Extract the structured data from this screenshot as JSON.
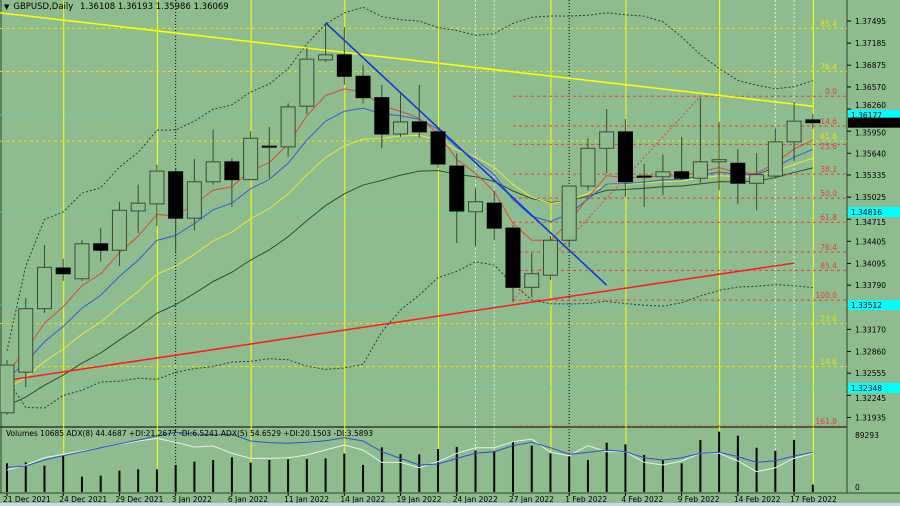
{
  "header": {
    "symbol": "GBPUSD,Daily",
    "ohlc": "1.36108 1.36193 1.35986 1.36069"
  },
  "indicator_label": "Volumes 10685  ADX(8) 44.4687 +DI:21.2677 -DI:6.5241  ADX(5) 54.6529 +DI:20.1503 -DI:3.5893",
  "colors": {
    "background": "#8fbc8f",
    "bull_body": "#8fbc8f",
    "bear_body": "#000000",
    "candle_outline": "#3a4a3a",
    "ma_fast": "#e0463a",
    "ma_mid": "#3a5ad8",
    "ma_slow": "#e8e838",
    "ma_long": "#2f4f2f",
    "trend_yellow": "#ffff00",
    "trend_blue": "#1030e0",
    "trend_red": "#ff1a1a",
    "fib_red": "#e04040",
    "fib_yellow": "#e8e800",
    "level_cyan": "#00ffff",
    "adx_main": "#3050d0",
    "adx_secondary": "#e8f0e8"
  },
  "chart_data": {
    "type": "candlestick",
    "title": "GBPUSD,Daily",
    "dates": [
      "2021-12-21",
      "2021-12-22",
      "2021-12-23",
      "2021-12-24",
      "2021-12-27",
      "2021-12-28",
      "2021-12-29",
      "2021-12-30",
      "2021-12-31",
      "2022-01-03",
      "2022-01-04",
      "2022-01-05",
      "2022-01-06",
      "2022-01-07",
      "2022-01-10",
      "2022-01-11",
      "2022-01-12",
      "2022-01-13",
      "2022-01-14",
      "2022-01-17",
      "2022-01-18",
      "2022-01-19",
      "2022-01-20",
      "2022-01-21",
      "2022-01-24",
      "2022-01-25",
      "2022-01-26",
      "2022-01-27",
      "2022-01-28",
      "2022-01-31",
      "2022-02-01",
      "2022-02-02",
      "2022-02-03",
      "2022-02-04",
      "2022-02-07",
      "2022-02-08",
      "2022-02-09",
      "2022-02-10",
      "2022-02-11",
      "2022-02-14",
      "2022-02-15",
      "2022-02-16",
      "2022-02-17",
      "2022-02-18"
    ],
    "open": [
      1.32,
      1.3257,
      1.3346,
      1.3403,
      1.3388,
      1.3437,
      1.3428,
      1.3483,
      1.3493,
      1.3538,
      1.3473,
      1.3524,
      1.3552,
      1.3527,
      1.3574,
      1.3573,
      1.363,
      1.3695,
      1.3702,
      1.3672,
      1.3642,
      1.3591,
      1.3608,
      1.3594,
      1.3546,
      1.3482,
      1.3494,
      1.3459,
      1.3376,
      1.3393,
      1.3442,
      1.3518,
      1.3571,
      1.3594,
      1.3532,
      1.3531,
      1.3538,
      1.3529,
      1.3552,
      1.355,
      1.3522,
      1.3532,
      1.358,
      1.36108
    ],
    "high": [
      1.3274,
      1.3361,
      1.3435,
      1.3416,
      1.3442,
      1.3459,
      1.3496,
      1.352,
      1.3548,
      1.3543,
      1.3556,
      1.3597,
      1.3557,
      1.3595,
      1.3601,
      1.3634,
      1.3712,
      1.3747,
      1.3741,
      1.3688,
      1.366,
      1.3649,
      1.366,
      1.3597,
      1.3564,
      1.3515,
      1.3511,
      1.3463,
      1.3424,
      1.3448,
      1.3518,
      1.3585,
      1.3626,
      1.3612,
      1.3549,
      1.3562,
      1.3587,
      1.3642,
      1.3608,
      1.357,
      1.3564,
      1.3599,
      1.3636,
      1.36193
    ],
    "low": [
      1.3197,
      1.3236,
      1.334,
      1.3385,
      1.3385,
      1.3412,
      1.3406,
      1.3452,
      1.3462,
      1.3426,
      1.3456,
      1.352,
      1.3489,
      1.3527,
      1.3529,
      1.3559,
      1.3619,
      1.3692,
      1.366,
      1.3634,
      1.3571,
      1.3587,
      1.3586,
      1.3543,
      1.3438,
      1.3434,
      1.3442,
      1.3355,
      1.3362,
      1.3386,
      1.3433,
      1.3512,
      1.3536,
      1.3503,
      1.3489,
      1.3505,
      1.3527,
      1.3522,
      1.3512,
      1.3493,
      1.3484,
      1.3529,
      1.3553,
      1.35986
    ],
    "close": [
      1.3267,
      1.3346,
      1.3404,
      1.3395,
      1.3437,
      1.3428,
      1.3484,
      1.3494,
      1.3539,
      1.3473,
      1.3524,
      1.3552,
      1.3527,
      1.3585,
      1.3573,
      1.3629,
      1.3696,
      1.3702,
      1.3672,
      1.3642,
      1.3591,
      1.3608,
      1.3594,
      1.3549,
      1.3483,
      1.3496,
      1.3459,
      1.3376,
      1.3395,
      1.3442,
      1.3518,
      1.3571,
      1.3594,
      1.3524,
      1.3531,
      1.3538,
      1.3529,
      1.3552,
      1.3555,
      1.3522,
      1.3534,
      1.358,
      1.3609,
      1.36069
    ],
    "volume": [
      41300,
      42700,
      37900,
      52300,
      22100,
      23500,
      30700,
      32600,
      32600,
      38900,
      43700,
      46100,
      49900,
      42200,
      46100,
      47000,
      47500,
      48500,
      55200,
      38900,
      64300,
      54700,
      54200,
      61900,
      64800,
      59500,
      59000,
      72500,
      66700,
      55700,
      50900,
      46100,
      71000,
      68600,
      53300,
      46100,
      41300,
      74900,
      86900,
      81100,
      63800,
      59000,
      74900,
      10685
    ],
    "adx_main": [
      27.9,
      29.4,
      36.1,
      41.0,
      45.5,
      50.0,
      54.2,
      58.7,
      63.2,
      67.4,
      65.5,
      64.4,
      65.1,
      57.6,
      55.7,
      55.0,
      56.1,
      57.9,
      61.3,
      57.6,
      45.5,
      38.0,
      30.5,
      31.6,
      38.0,
      43.7,
      45.5,
      52.3,
      56.1,
      50.0,
      42.6,
      44.8,
      47.4,
      45.5,
      38.7,
      36.1,
      38.7,
      43.7,
      44.8,
      39.9,
      33.5,
      35.3,
      40.6,
      44.8
    ],
    "adx_secondary": [
      24.8,
      30.5,
      38.7,
      42.6,
      46.3,
      50.0,
      53.8,
      57.6,
      60.6,
      56.1,
      50.8,
      51.9,
      43.7,
      38.0,
      38.0,
      38.7,
      41.8,
      47.4,
      53.1,
      47.4,
      33.5,
      33.5,
      27.4,
      34.3,
      43.7,
      50.0,
      50.0,
      56.8,
      59.8,
      44.8,
      41.0,
      52.3,
      45.5,
      45.5,
      33.5,
      30.5,
      35.0,
      43.7,
      43.7,
      35.0,
      22.9,
      27.4,
      38.0,
      43.7
    ],
    "price_axis": {
      "ticks": [
        "1.37495",
        "1.37185",
        "1.36875",
        "1.36570",
        "1.36260",
        "1.35950",
        "1.35640",
        "1.35335",
        "1.35025",
        "1.34715",
        "1.34405",
        "1.34095",
        "1.33790",
        "1.33170",
        "1.32860",
        "1.32555",
        "1.32245",
        "1.31935"
      ],
      "range": [
        1.3172,
        1.378
      ]
    },
    "volume_axis": {
      "max_label": "89293",
      "min_label": "0"
    },
    "date_labels": [
      {
        "index": 0,
        "label": "21 Dec 2021"
      },
      {
        "index": 3,
        "label": "24 Dec 2021"
      },
      {
        "index": 6,
        "label": "29 Dec 2021"
      },
      {
        "index": 9,
        "label": "3 Jan 2022"
      },
      {
        "index": 12,
        "label": "6 Jan 2022"
      },
      {
        "index": 15,
        "label": "11 Jan 2022"
      },
      {
        "index": 18,
        "label": "14 Jan 2022"
      },
      {
        "index": 21,
        "label": "19 Jan 2022"
      },
      {
        "index": 24,
        "label": "24 Jan 2022"
      },
      {
        "index": 27,
        "label": "27 Jan 2022"
      },
      {
        "index": 30,
        "label": "1 Feb 2022"
      },
      {
        "index": 33,
        "label": "4 Feb 2022"
      },
      {
        "index": 36,
        "label": "9 Feb 2022"
      },
      {
        "index": 39,
        "label": "14 Feb 2022"
      },
      {
        "index": 42,
        "label": "17 Feb 2022"
      }
    ],
    "current_price_label": "1.36069",
    "current_price": 1.36069,
    "cyan_levels": [
      {
        "price": 1.36177,
        "label": "1.36177"
      },
      {
        "price": 1.34816,
        "label": "1.34816"
      },
      {
        "price": 1.33512,
        "label": "1.33512"
      },
      {
        "price": 1.32348,
        "label": "1.32348"
      }
    ],
    "trendlines": [
      {
        "name": "yellow",
        "from": {
          "index": -0.4,
          "price": 1.3761
        },
        "to": {
          "index": 43,
          "price": 1.363
        }
      },
      {
        "name": "blue",
        "from": {
          "index": 17,
          "price": 1.3747
        },
        "to": {
          "index": 32,
          "price": 1.3379
        }
      },
      {
        "name": "red",
        "from": {
          "index": -0.4,
          "price": 1.3244
        },
        "to": {
          "index": 42,
          "price": 1.341
        }
      }
    ],
    "fib_red": {
      "price_0": 1.3644,
      "price_100": 1.3358,
      "start_index": 27,
      "levels": [
        {
          "pct": 0,
          "label": "0.0"
        },
        {
          "pct": 14.6,
          "label": "14.6"
        },
        {
          "pct": 23.6,
          "label": "23.6"
        },
        {
          "pct": 38.2,
          "label": "38.2"
        },
        {
          "pct": 50,
          "label": "50.0"
        },
        {
          "pct": 61.8,
          "label": "61.8"
        },
        {
          "pct": 76.4,
          "label": "76.4"
        },
        {
          "pct": 85.4,
          "label": "85.4"
        },
        {
          "pct": 100,
          "label": "100.0"
        },
        {
          "pct": 161.8,
          "label": "161.8"
        }
      ]
    },
    "fib_yellow": {
      "price_0": 1.3167,
      "price_100": 1.3837,
      "levels": [
        {
          "pct": 14.6,
          "label": "14.6"
        },
        {
          "pct": 23.6,
          "label": "23.6"
        },
        {
          "pct": 61.8,
          "label": "61.8"
        },
        {
          "pct": 76.4,
          "label": "76.4"
        },
        {
          "pct": 85.4,
          "label": "85.4"
        }
      ]
    },
    "grid": false
  }
}
